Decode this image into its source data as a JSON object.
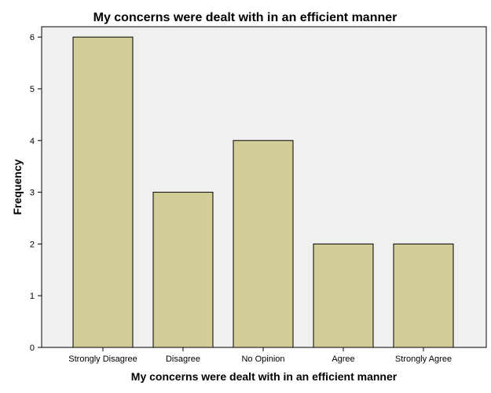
{
  "chart_data": {
    "type": "bar",
    "title": "My concerns were dealt with in an efficient manner",
    "xlabel": "My concerns were dealt with in an efficient manner",
    "ylabel": "Frequency",
    "categories": [
      "Strongly Disagree",
      "Disagree",
      "No Opinion",
      "Agree",
      "Strongly Agree"
    ],
    "values": [
      6,
      3,
      4,
      2,
      2
    ],
    "yticks": [
      "0",
      "1",
      "2",
      "3",
      "4",
      "5",
      "6"
    ],
    "ylim": [
      0,
      6.2
    ],
    "grid": false,
    "colors": {
      "bar_fill": "#d3ce98",
      "bar_stroke": "#000000",
      "plot_background": "#f0f0f0",
      "axis": "#000000"
    }
  }
}
